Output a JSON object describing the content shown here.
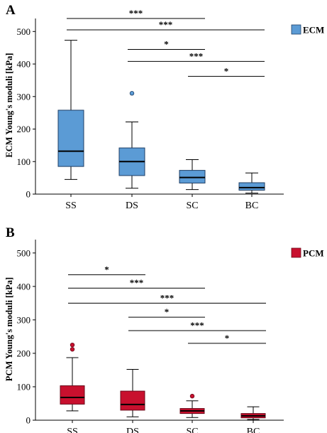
{
  "chart_data": [
    {
      "type": "box",
      "panel_label": "A",
      "ylabel": "ECM Young's moduli [kPa]",
      "ylim": [
        0,
        540
      ],
      "yticks": [
        0,
        100,
        200,
        300,
        400,
        500
      ],
      "categories": [
        "SS",
        "DS",
        "SC",
        "BC"
      ],
      "legend": {
        "label": "ECM",
        "placement": "top-right"
      },
      "color": "#5b9bd5",
      "stroke": "#1f3f66",
      "boxes": [
        {
          "category": "SS",
          "min": 45,
          "q1": 85,
          "median": 132,
          "q3": 258,
          "max": 473,
          "outliers": []
        },
        {
          "category": "DS",
          "min": 18,
          "q1": 57,
          "median": 100,
          "q3": 142,
          "max": 222,
          "outliers": [
            310
          ]
        },
        {
          "category": "SC",
          "min": 14,
          "q1": 34,
          "median": 51,
          "q3": 73,
          "max": 106,
          "outliers": []
        },
        {
          "category": "BC",
          "min": 3,
          "q1": 12,
          "median": 20,
          "q3": 35,
          "max": 65,
          "outliers": []
        }
      ],
      "significance": [
        {
          "from": "SS",
          "to": "SC",
          "label": "***",
          "y": 540
        },
        {
          "from": "SS",
          "to": "BC",
          "label": "***",
          "y": 505
        },
        {
          "from": "DS",
          "to": "SC",
          "label": "*",
          "y": 445
        },
        {
          "from": "DS",
          "to": "BC",
          "label": "***",
          "y": 408
        },
        {
          "from": "SC",
          "to": "BC",
          "label": "*",
          "y": 362
        }
      ]
    },
    {
      "type": "box",
      "panel_label": "B",
      "ylabel": "PCM Young's moduli [kPa]",
      "ylim": [
        0,
        540
      ],
      "yticks": [
        0,
        100,
        200,
        300,
        400,
        500
      ],
      "categories": [
        "SS",
        "DS",
        "SC",
        "BC"
      ],
      "legend": {
        "label": "PCM",
        "placement": "top-right"
      },
      "color": "#c8102e",
      "stroke": "#6b0a1a",
      "boxes": [
        {
          "category": "SS",
          "min": 28,
          "q1": 48,
          "median": 68,
          "q3": 103,
          "max": 187,
          "outliers": [
            212,
            225
          ]
        },
        {
          "category": "DS",
          "min": 10,
          "q1": 30,
          "median": 47,
          "q3": 87,
          "max": 152,
          "outliers": []
        },
        {
          "category": "SC",
          "min": 8,
          "q1": 20,
          "median": 28,
          "q3": 35,
          "max": 58,
          "outliers": [
            72
          ]
        },
        {
          "category": "BC",
          "min": 2,
          "q1": 7,
          "median": 13,
          "q3": 20,
          "max": 40,
          "outliers": []
        }
      ],
      "significance": [
        {
          "from": "SS",
          "to": "DS",
          "label": "*",
          "y": 435
        },
        {
          "from": "SS",
          "to": "SC",
          "label": "***",
          "y": 395
        },
        {
          "from": "SS",
          "to": "BC",
          "label": "***",
          "y": 350
        },
        {
          "from": "DS",
          "to": "SC",
          "label": "*",
          "y": 308
        },
        {
          "from": "DS",
          "to": "BC",
          "label": "***",
          "y": 268
        },
        {
          "from": "SC",
          "to": "BC",
          "label": "*",
          "y": 230
        }
      ]
    }
  ]
}
